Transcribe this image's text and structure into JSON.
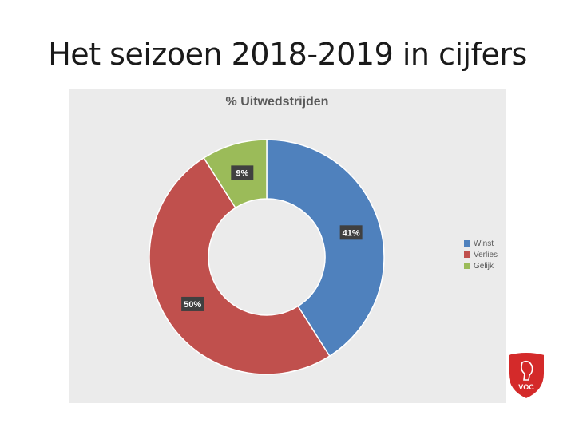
{
  "slide": {
    "title": "Het seizoen 2018-2019 in cijfers"
  },
  "chart_data": {
    "type": "pie",
    "variant": "donut",
    "title": "% Uitwedstrijden",
    "categories": [
      "Winst",
      "Verlies",
      "Gelijk"
    ],
    "values": [
      41,
      50,
      9
    ],
    "labels": [
      "41%",
      "50%",
      "9%"
    ],
    "colors": [
      "#4f81bd",
      "#c0504d",
      "#9bbb59"
    ],
    "legend_position": "right"
  },
  "logo": {
    "text": "VOC",
    "color": "#d42a2a"
  }
}
